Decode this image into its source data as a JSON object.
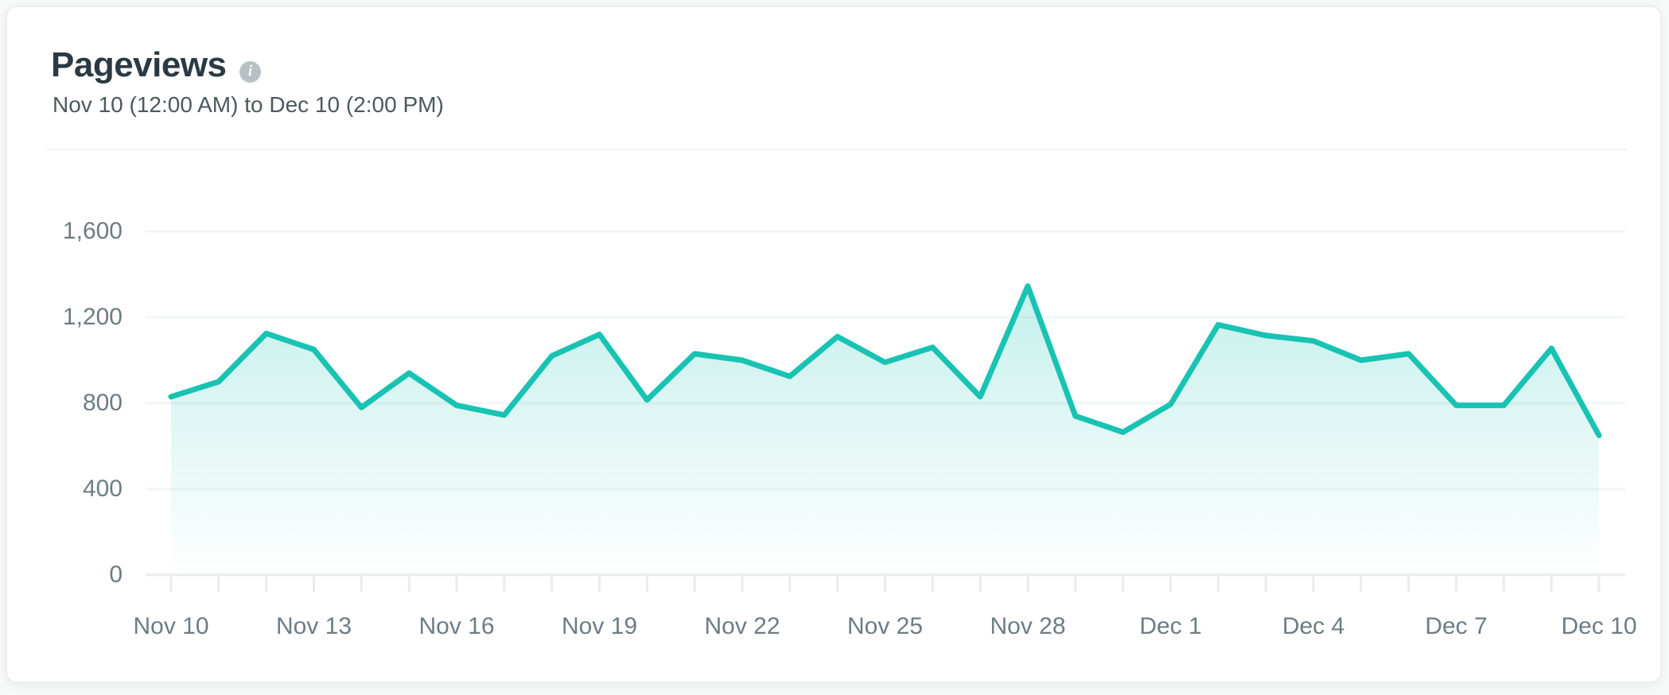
{
  "header": {
    "title": "Pageviews",
    "info_icon_glyph": "i",
    "date_range": "Nov 10 (12:00 AM) to Dec 10 (2:00 PM)"
  },
  "chart_data": {
    "type": "area",
    "title": "Pageviews",
    "xlabel": "",
    "ylabel": "",
    "x": [
      "Nov 10",
      "Nov 11",
      "Nov 12",
      "Nov 13",
      "Nov 14",
      "Nov 15",
      "Nov 16",
      "Nov 17",
      "Nov 18",
      "Nov 19",
      "Nov 20",
      "Nov 21",
      "Nov 22",
      "Nov 23",
      "Nov 24",
      "Nov 25",
      "Nov 26",
      "Nov 27",
      "Nov 28",
      "Nov 29",
      "Nov 30",
      "Dec 1",
      "Dec 2",
      "Dec 3",
      "Dec 4",
      "Dec 5",
      "Dec 6",
      "Dec 7",
      "Dec 8",
      "Dec 9",
      "Dec 10"
    ],
    "values": [
      830,
      900,
      1125,
      1050,
      780,
      940,
      790,
      745,
      1020,
      1120,
      815,
      1030,
      1000,
      925,
      1110,
      990,
      1060,
      830,
      1345,
      740,
      665,
      795,
      1165,
      1115,
      1090,
      1000,
      1030,
      790,
      790,
      1055,
      650
    ],
    "ylim": [
      0,
      1600
    ],
    "y_ticks": [
      0,
      400,
      800,
      1200,
      1600
    ],
    "y_tick_labels": [
      "0",
      "400",
      "800",
      "1,200",
      "1,600"
    ],
    "x_tick_label_every": 3,
    "x_shown_tick_labels": [
      "Nov 10",
      "Nov 13",
      "Nov 16",
      "Nov 19",
      "Nov 22",
      "Nov 25",
      "Nov 28",
      "Dec 1",
      "Dec 4",
      "Dec 7",
      "Dec 10"
    ],
    "grid": "horizontal",
    "legend": "none",
    "colors": {
      "line": "#18c3b3",
      "fill_top": "rgba(24,195,179,0.30)",
      "fill_bottom": "rgba(24,195,179,0)",
      "grid": "#f3f4f5",
      "axis": "#e9ebec",
      "tick_label": "#6d7c83",
      "title": "#2b3a42",
      "subtitle": "#4d585e"
    }
  }
}
